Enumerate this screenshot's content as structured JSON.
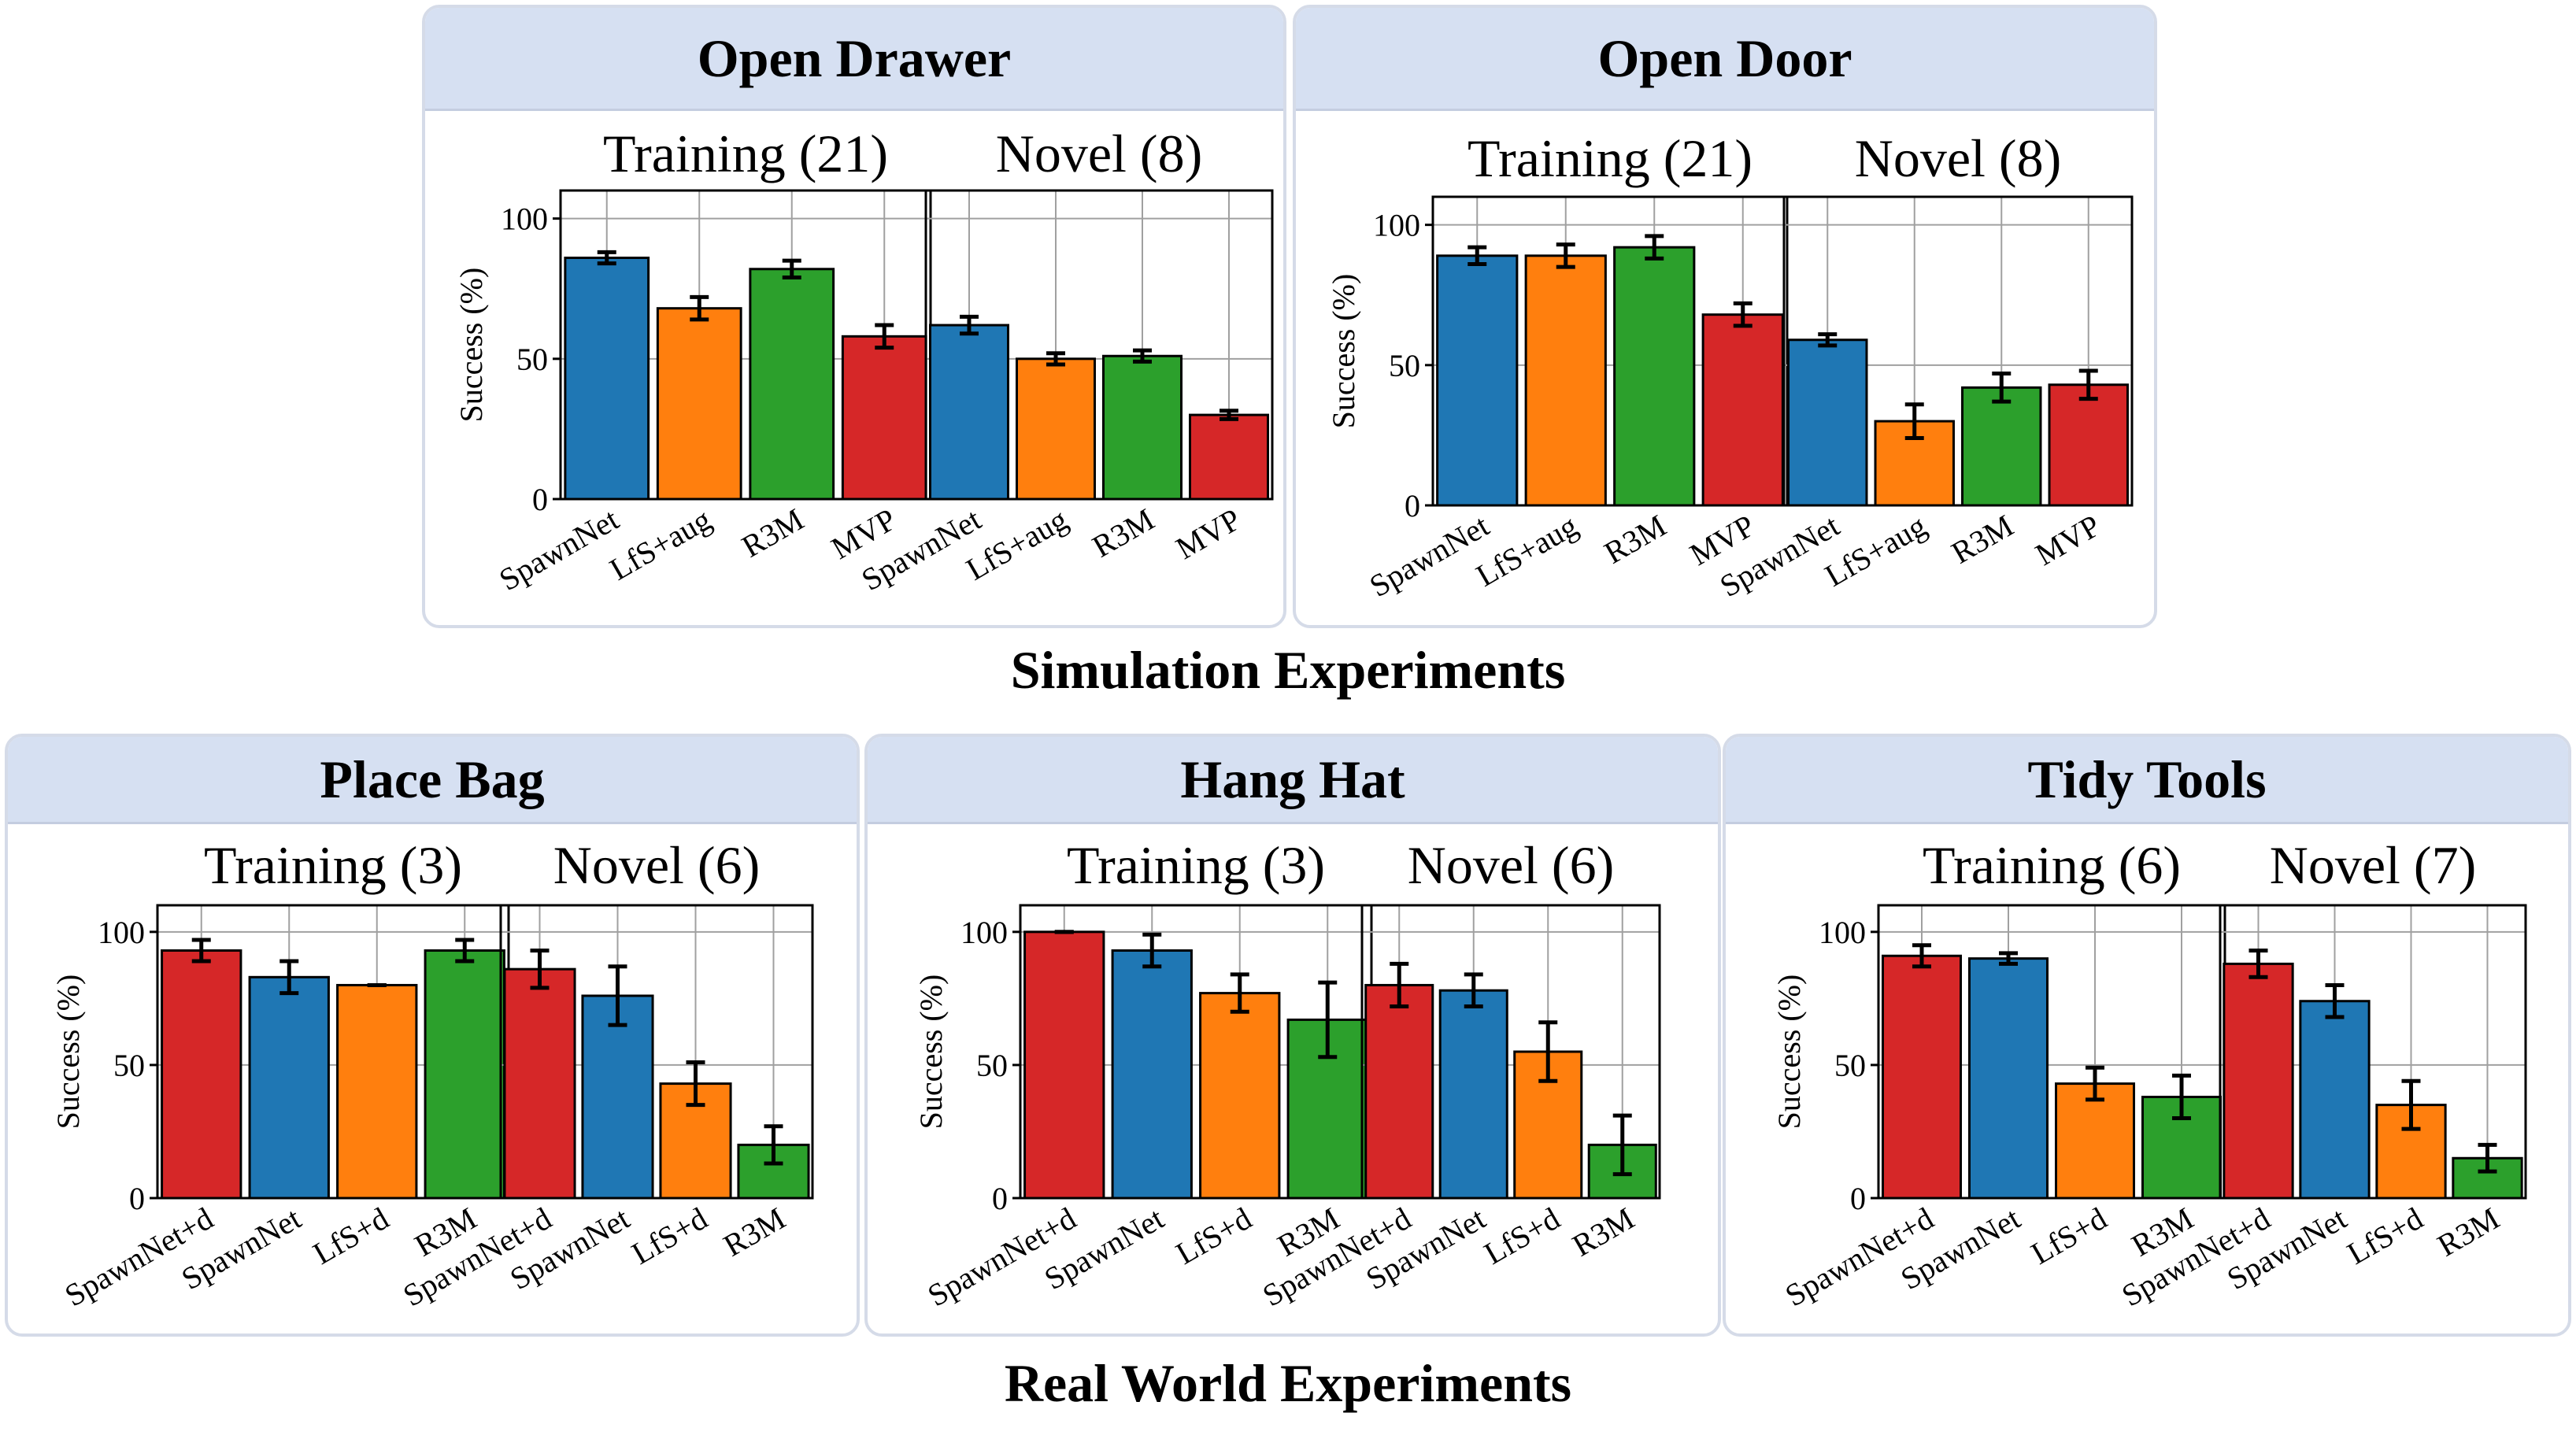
{
  "sections": {
    "simulation": "Simulation Experiments",
    "real_world": "Real World Experiments"
  },
  "colors": {
    "SpawnNet+d": "#d62728",
    "SpawnNet": "#1f77b4",
    "LfS+aug": "#ff7f0e",
    "LfS+d": "#ff7f0e",
    "R3M": "#2ca02c",
    "MVP": "#d62728"
  },
  "chart_data": [
    {
      "title": "Open Drawer",
      "type": "bar",
      "ylabel": "Success (%)",
      "ylim": [
        0,
        110
      ],
      "yticks": [
        0,
        50,
        100
      ],
      "grid": true,
      "subplots": [
        {
          "title": "Training (21)",
          "categories": [
            "SpawnNet",
            "LfS+aug",
            "R3M",
            "MVP"
          ],
          "values": [
            86,
            68,
            82,
            58
          ],
          "errors": [
            2,
            4,
            3,
            4
          ]
        },
        {
          "title": "Novel (8)",
          "categories": [
            "SpawnNet",
            "LfS+aug",
            "R3M",
            "MVP"
          ],
          "values": [
            62,
            50,
            51,
            30
          ],
          "errors": [
            3,
            2,
            2,
            1.5
          ]
        }
      ]
    },
    {
      "title": "Open Door",
      "type": "bar",
      "ylabel": "Success (%)",
      "ylim": [
        0,
        110
      ],
      "yticks": [
        0,
        50,
        100
      ],
      "grid": true,
      "subplots": [
        {
          "title": "Training (21)",
          "categories": [
            "SpawnNet",
            "LfS+aug",
            "R3M",
            "MVP"
          ],
          "values": [
            89,
            89,
            92,
            68
          ],
          "errors": [
            3,
            4,
            4,
            4
          ]
        },
        {
          "title": "Novel (8)",
          "categories": [
            "SpawnNet",
            "LfS+aug",
            "R3M",
            "MVP"
          ],
          "values": [
            59,
            30,
            42,
            43
          ],
          "errors": [
            2,
            6,
            5,
            5
          ]
        }
      ]
    },
    {
      "title": "Place Bag",
      "type": "bar",
      "ylabel": "Success (%)",
      "ylim": [
        0,
        110
      ],
      "yticks": [
        0,
        50,
        100
      ],
      "grid": true,
      "subplots": [
        {
          "title": "Training (3)",
          "categories": [
            "SpawnNet+d",
            "SpawnNet",
            "LfS+d",
            "R3M"
          ],
          "values": [
            93,
            83,
            80,
            93
          ],
          "errors": [
            4,
            6,
            0,
            4
          ]
        },
        {
          "title": "Novel (6)",
          "categories": [
            "SpawnNet+d",
            "SpawnNet",
            "LfS+d",
            "R3M"
          ],
          "values": [
            86,
            76,
            43,
            20
          ],
          "errors": [
            7,
            11,
            8,
            7
          ]
        }
      ]
    },
    {
      "title": "Hang Hat",
      "type": "bar",
      "ylabel": "Success (%)",
      "ylim": [
        0,
        110
      ],
      "yticks": [
        0,
        50,
        100
      ],
      "grid": true,
      "subplots": [
        {
          "title": "Training (3)",
          "categories": [
            "SpawnNet+d",
            "SpawnNet",
            "LfS+d",
            "R3M"
          ],
          "values": [
            100,
            93,
            77,
            67
          ],
          "errors": [
            0,
            6,
            7,
            14
          ]
        },
        {
          "title": "Novel (6)",
          "categories": [
            "SpawnNet+d",
            "SpawnNet",
            "LfS+d",
            "R3M"
          ],
          "values": [
            80,
            78,
            55,
            20
          ],
          "errors": [
            8,
            6,
            11,
            11
          ]
        }
      ]
    },
    {
      "title": "Tidy Tools",
      "type": "bar",
      "ylabel": "Success (%)",
      "ylim": [
        0,
        110
      ],
      "yticks": [
        0,
        50,
        100
      ],
      "grid": true,
      "subplots": [
        {
          "title": "Training (6)",
          "categories": [
            "SpawnNet+d",
            "SpawnNet",
            "LfS+d",
            "R3M"
          ],
          "values": [
            91,
            90,
            43,
            38
          ],
          "errors": [
            4,
            2,
            6,
            8
          ]
        },
        {
          "title": "Novel (7)",
          "categories": [
            "SpawnNet+d",
            "SpawnNet",
            "LfS+d",
            "R3M"
          ],
          "values": [
            88,
            74,
            35,
            15
          ],
          "errors": [
            5,
            6,
            9,
            5
          ]
        }
      ]
    }
  ]
}
